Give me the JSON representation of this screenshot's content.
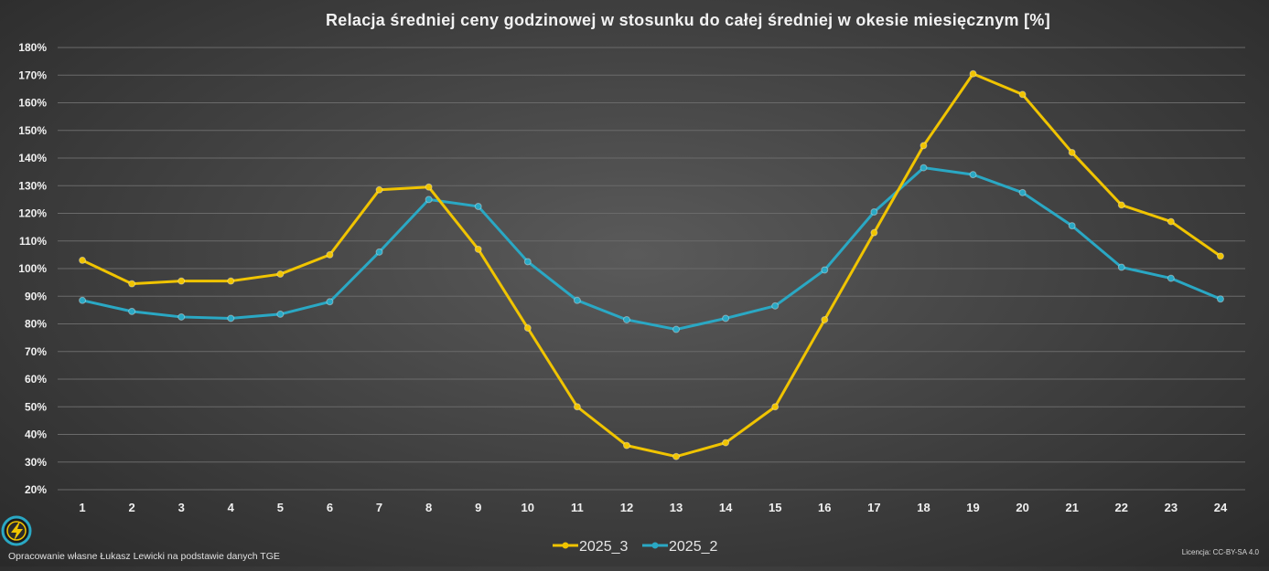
{
  "colors": {
    "series_2025_3": "#f0c400",
    "series_2025_2": "#2aa8c4",
    "background": "#3f3f3f",
    "grid": "#6a6a6a",
    "logo_ring": "#2aa8c4",
    "logo_bolt": "#f0c400"
  },
  "footer": {
    "credit": "Opracowanie własne Łukasz Lewicki na podstawie danych TGE",
    "license": "Licencja: CC-BY-SA 4.0",
    "logo_icon": "lightning-bolt-icon"
  },
  "chart_data": {
    "type": "line",
    "title": "Relacja średniej ceny godzinowej w stosunku do całej średniej w okesie miesięcznym [%]",
    "xlabel": "",
    "ylabel": "",
    "categories": [
      "1",
      "2",
      "3",
      "4",
      "5",
      "6",
      "7",
      "8",
      "9",
      "10",
      "11",
      "12",
      "13",
      "14",
      "15",
      "16",
      "17",
      "18",
      "19",
      "20",
      "21",
      "22",
      "23",
      "24"
    ],
    "ylim": [
      20,
      180
    ],
    "yticks": [
      "20%",
      "30%",
      "40%",
      "50%",
      "60%",
      "70%",
      "80%",
      "90%",
      "100%",
      "110%",
      "120%",
      "130%",
      "140%",
      "150%",
      "160%",
      "170%",
      "180%"
    ],
    "ytick_values": [
      20,
      30,
      40,
      50,
      60,
      70,
      80,
      90,
      100,
      110,
      120,
      130,
      140,
      150,
      160,
      170,
      180
    ],
    "grid": true,
    "legend_position": "bottom",
    "series": [
      {
        "name": "2025_3",
        "values": [
          103,
          94.5,
          95.5,
          95.5,
          98,
          105,
          128.5,
          129.5,
          107,
          78.5,
          50,
          36,
          32,
          37,
          50,
          81.5,
          113,
          144.5,
          170.5,
          163,
          142,
          123,
          117,
          104.5
        ]
      },
      {
        "name": "2025_2",
        "values": [
          88.5,
          84.5,
          82.5,
          82,
          83.5,
          88,
          106,
          125,
          122.5,
          102.5,
          88.5,
          81.5,
          78,
          82,
          86.5,
          99.5,
          120.5,
          136.5,
          134,
          127.5,
          115.5,
          100.5,
          96.5,
          89
        ]
      }
    ]
  }
}
